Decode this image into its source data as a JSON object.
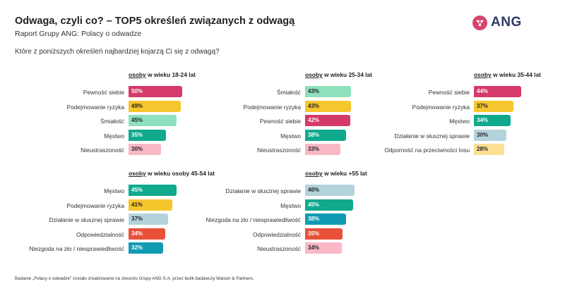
{
  "header": {
    "title": "Odwaga, czyli co? – TOP5 określeń związanych z odwagą",
    "subtitle": "Raport Grupy ANG: Polacy o odwadze",
    "question": "Które z poniższych określeń najbardziej kojarzą Ci się z odwagą?"
  },
  "logo": {
    "text": "ANG",
    "color": "#d9436d"
  },
  "footnote": "Badanie „Polacy o odwadze” zostało zrealizowane na zleceniu Grupy ANG S.A. przez butik badawczy Maison & Partners.",
  "colors": {
    "Pewność siebie": "#d63a6a",
    "Podejmowanie ryzyka": "#f5c62e",
    "Śmiałość": "#8fe0bc",
    "Męstwo": "#10a98e",
    "Nieustraszoność": "#f8b8c6",
    "Działanie w słusznej sprawie": "#b4d3dc",
    "Odporność na przeciwności losu": "#fbdf93",
    "Odpowiedzialność": "#e9503a",
    "Niezgoda na zło / niesprawiedliwość": "#119bb3"
  },
  "chart_data": [
    {
      "type": "bar",
      "header_prefix": "osoby",
      "header_rest": "w wieku 18-24 lat",
      "categories": [
        "Pewność siebie",
        "Podejmowanie ryzyka",
        "Śmiałość",
        "Męstwo",
        "Nieustraszoność"
      ],
      "values": [
        50,
        49,
        45,
        35,
        30
      ],
      "value_labels": [
        "50%",
        "49%",
        "45%",
        "35%",
        "30%"
      ]
    },
    {
      "type": "bar",
      "header_prefix": "osoby",
      "header_rest": "w wieku 25-34 lat",
      "categories": [
        "Śmiałość",
        "Podejmowanie ryzyka",
        "Pewność siebie",
        "Męstwo",
        "Nieustraszoność"
      ],
      "values": [
        43,
        43,
        42,
        38,
        33
      ],
      "value_labels": [
        "43%",
        "43%",
        "42%",
        "38%",
        "33%"
      ]
    },
    {
      "type": "bar",
      "header_prefix": "osoby",
      "header_rest": "w wieku 35-44 lat",
      "categories": [
        "Pewność siebie",
        "Podejmowanie ryzyka",
        "Męstwo",
        "Działanie w słusznej sprawie",
        "Odporność na przeciwności losu"
      ],
      "values": [
        44,
        37,
        34,
        30,
        28
      ],
      "value_labels": [
        "44%",
        "37%",
        "34%",
        "30%",
        "28%"
      ]
    },
    {
      "type": "bar",
      "header_prefix": "osoby",
      "header_rest": "w wieku osoby 45-54 lat",
      "categories": [
        "Męstwo",
        "Podejmowanie ryzyka",
        "Działanie w słusznej sprawie",
        "Odpowiedzialność",
        "Niezgoda na zło / niesprawiedliwość"
      ],
      "values": [
        45,
        41,
        37,
        34,
        32
      ],
      "value_labels": [
        "45%",
        "41%",
        "37%",
        "34%",
        "32%"
      ]
    },
    {
      "type": "bar",
      "header_prefix": "osoby",
      "header_rest": "w wieku +55 lat",
      "categories": [
        "Działanie w słusznej sprawie",
        "Męstwo",
        "Niezgoda na zło / niesprawiedliwość",
        "Odpowiedzialność",
        "Nieustraszoność"
      ],
      "values": [
        46,
        45,
        38,
        35,
        34
      ],
      "value_labels": [
        "46%",
        "45%",
        "38%",
        "35%",
        "34%"
      ]
    }
  ]
}
